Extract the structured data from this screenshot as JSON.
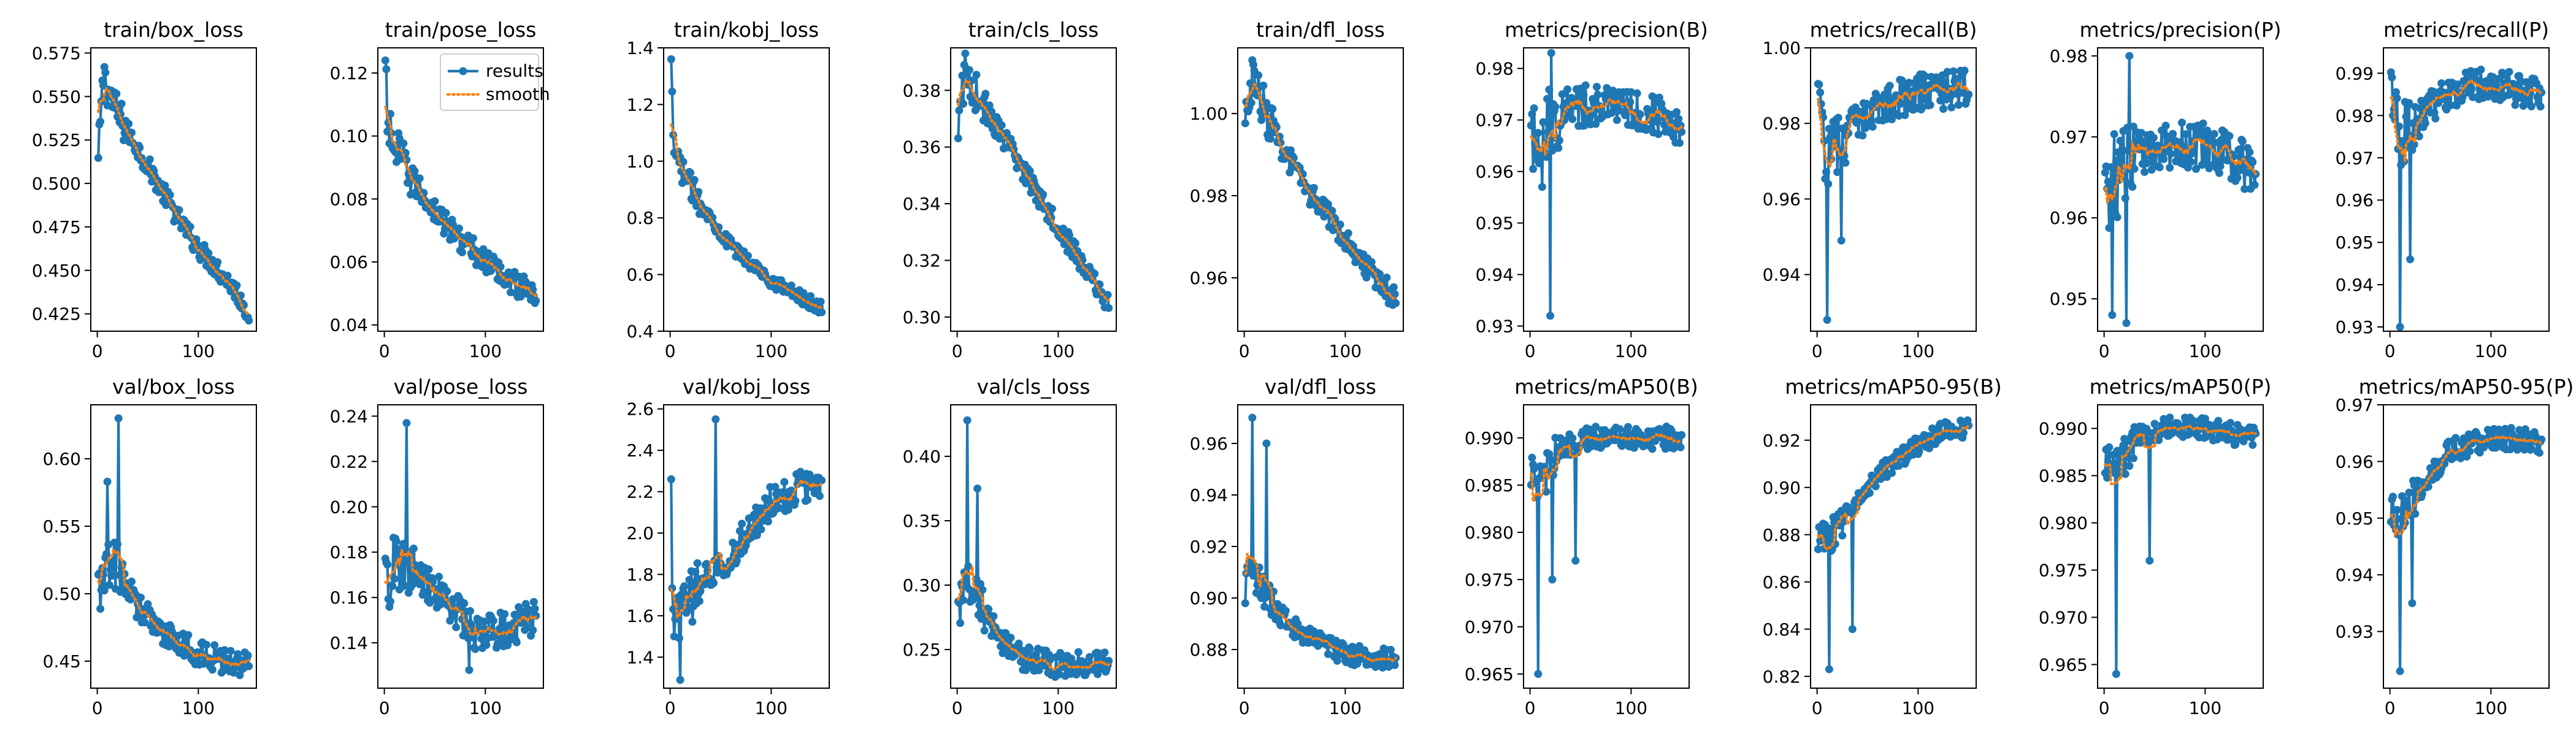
{
  "colors": {
    "results": "#1f77b4",
    "smooth": "#ff7f0e"
  },
  "legend": {
    "results": "results",
    "smooth": "smooth",
    "placement": "upper-right of train/pose_loss"
  },
  "chart_data": [
    {
      "type": "line",
      "title": "train/box_loss",
      "x_range": [
        1,
        150
      ],
      "xticks": [
        0,
        100
      ],
      "ylim": [
        0.415,
        0.578
      ],
      "yticks": [
        0.425,
        0.45,
        0.475,
        0.5,
        0.525,
        0.55,
        0.575
      ],
      "ytick_labels": [
        "0.425",
        "0.450",
        "0.475",
        "0.500",
        "0.525",
        "0.550",
        "0.575"
      ],
      "trend": [
        [
          1,
          0.512
        ],
        [
          3,
          0.535
        ],
        [
          6,
          0.56
        ],
        [
          10,
          0.555
        ],
        [
          20,
          0.54
        ],
        [
          40,
          0.52
        ],
        [
          60,
          0.5
        ],
        [
          80,
          0.48
        ],
        [
          100,
          0.463
        ],
        [
          120,
          0.45
        ],
        [
          135,
          0.44
        ],
        [
          150,
          0.425
        ]
      ],
      "noise": 0.006,
      "spikes": [
        [
          7,
          0.567
        ]
      ]
    },
    {
      "type": "line",
      "title": "train/pose_loss",
      "x_range": [
        1,
        150
      ],
      "xticks": [
        0,
        100
      ],
      "ylim": [
        0.038,
        0.128
      ],
      "yticks": [
        0.04,
        0.06,
        0.08,
        0.1,
        0.12
      ],
      "ytick_labels": [
        "0.04",
        "0.06",
        "0.08",
        "0.10",
        "0.12"
      ],
      "trend": [
        [
          1,
          0.124
        ],
        [
          3,
          0.105
        ],
        [
          10,
          0.096
        ],
        [
          30,
          0.085
        ],
        [
          60,
          0.072
        ],
        [
          100,
          0.06
        ],
        [
          130,
          0.053
        ],
        [
          150,
          0.05
        ]
      ],
      "noise": 0.004,
      "spikes": [
        [
          1,
          0.124
        ]
      ]
    },
    {
      "type": "line",
      "title": "train/kobj_loss",
      "x_range": [
        1,
        150
      ],
      "xticks": [
        0,
        100
      ],
      "ylim": [
        0.4,
        1.4
      ],
      "yticks": [
        0.4,
        0.6,
        0.8,
        1.0,
        1.2,
        1.4
      ],
      "ytick_labels": [
        "0.4",
        "0.6",
        "0.8",
        "1.0",
        "1.2",
        "1.4"
      ],
      "trend": [
        [
          1,
          1.36
        ],
        [
          3,
          1.05
        ],
        [
          10,
          0.98
        ],
        [
          30,
          0.85
        ],
        [
          60,
          0.7
        ],
        [
          100,
          0.58
        ],
        [
          130,
          0.52
        ],
        [
          150,
          0.48
        ]
      ],
      "noise": 0.025,
      "spikes": [
        [
          1,
          1.36
        ]
      ]
    },
    {
      "type": "line",
      "title": "train/cls_loss",
      "x_range": [
        1,
        150
      ],
      "xticks": [
        0,
        100
      ],
      "ylim": [
        0.295,
        0.395
      ],
      "yticks": [
        0.3,
        0.32,
        0.34,
        0.36,
        0.38
      ],
      "ytick_labels": [
        "0.30",
        "0.32",
        "0.34",
        "0.36",
        "0.38"
      ],
      "trend": [
        [
          1,
          0.36
        ],
        [
          4,
          0.38
        ],
        [
          10,
          0.385
        ],
        [
          30,
          0.372
        ],
        [
          60,
          0.355
        ],
        [
          100,
          0.332
        ],
        [
          130,
          0.315
        ],
        [
          150,
          0.305
        ]
      ],
      "noise": 0.004,
      "spikes": [
        [
          8,
          0.393
        ]
      ]
    },
    {
      "type": "line",
      "title": "train/dfl_loss",
      "x_range": [
        1,
        150
      ],
      "xticks": [
        0,
        100
      ],
      "ylim": [
        0.947,
        1.016
      ],
      "yticks": [
        0.96,
        0.98,
        1.0
      ],
      "ytick_labels": [
        "0.96",
        "0.98",
        "1.00"
      ],
      "trend": [
        [
          1,
          0.995
        ],
        [
          4,
          1.005
        ],
        [
          10,
          1.008
        ],
        [
          30,
          0.995
        ],
        [
          60,
          0.982
        ],
        [
          100,
          0.97
        ],
        [
          130,
          0.96
        ],
        [
          150,
          0.955
        ]
      ],
      "noise": 0.003,
      "spikes": [
        [
          8,
          1.013
        ]
      ]
    },
    {
      "type": "line",
      "title": "metrics/precision(B)",
      "x_range": [
        1,
        150
      ],
      "xticks": [
        0,
        100
      ],
      "ylim": [
        0.929,
        0.984
      ],
      "yticks": [
        0.93,
        0.94,
        0.95,
        0.96,
        0.97,
        0.98
      ],
      "ytick_labels": [
        "0.93",
        "0.94",
        "0.95",
        "0.96",
        "0.97",
        "0.98"
      ],
      "trend": [
        [
          1,
          0.965
        ],
        [
          10,
          0.968
        ],
        [
          30,
          0.972
        ],
        [
          60,
          0.973
        ],
        [
          100,
          0.972
        ],
        [
          130,
          0.971
        ],
        [
          150,
          0.969
        ]
      ],
      "noise": 0.004,
      "spikes": [
        [
          20,
          0.932
        ],
        [
          21,
          0.983
        ],
        [
          12,
          0.957
        ]
      ]
    },
    {
      "type": "line",
      "title": "metrics/recall(B)",
      "x_range": [
        1,
        150
      ],
      "xticks": [
        0,
        100
      ],
      "ylim": [
        0.925,
        1.0
      ],
      "yticks": [
        0.94,
        0.96,
        0.98,
        1.0
      ],
      "ytick_labels": [
        "0.94",
        "0.96",
        "0.98",
        "1.00"
      ],
      "trend": [
        [
          1,
          0.985
        ],
        [
          10,
          0.97
        ],
        [
          30,
          0.978
        ],
        [
          60,
          0.985
        ],
        [
          100,
          0.988
        ],
        [
          130,
          0.989
        ],
        [
          150,
          0.989
        ]
      ],
      "noise": 0.005,
      "spikes": [
        [
          10,
          0.928
        ],
        [
          24,
          0.949
        ]
      ]
    },
    {
      "type": "line",
      "title": "metrics/precision(P)",
      "x_range": [
        1,
        150
      ],
      "xticks": [
        0,
        100
      ],
      "ylim": [
        0.946,
        0.981
      ],
      "yticks": [
        0.95,
        0.96,
        0.97,
        0.98
      ],
      "ytick_labels": [
        "0.95",
        "0.96",
        "0.97",
        "0.98"
      ],
      "trend": [
        [
          1,
          0.962
        ],
        [
          10,
          0.965
        ],
        [
          30,
          0.968
        ],
        [
          60,
          0.969
        ],
        [
          100,
          0.969
        ],
        [
          130,
          0.967
        ],
        [
          150,
          0.966
        ]
      ],
      "noise": 0.003,
      "spikes": [
        [
          22,
          0.947
        ],
        [
          25,
          0.98
        ],
        [
          8,
          0.948
        ]
      ]
    },
    {
      "type": "line",
      "title": "metrics/recall(P)",
      "x_range": [
        1,
        150
      ],
      "xticks": [
        0,
        100
      ],
      "ylim": [
        0.929,
        0.996
      ],
      "yticks": [
        0.93,
        0.94,
        0.95,
        0.96,
        0.97,
        0.98,
        0.99
      ],
      "ytick_labels": [
        "0.93",
        "0.94",
        "0.95",
        "0.96",
        "0.97",
        "0.98",
        "0.99"
      ],
      "trend": [
        [
          1,
          0.985
        ],
        [
          10,
          0.975
        ],
        [
          30,
          0.98
        ],
        [
          60,
          0.986
        ],
        [
          100,
          0.988
        ],
        [
          130,
          0.986
        ],
        [
          150,
          0.986
        ]
      ],
      "noise": 0.004,
      "spikes": [
        [
          10,
          0.93
        ],
        [
          20,
          0.946
        ]
      ]
    },
    {
      "type": "line",
      "title": "val/box_loss",
      "x_range": [
        1,
        150
      ],
      "xticks": [
        0,
        100
      ],
      "ylim": [
        0.43,
        0.64
      ],
      "yticks": [
        0.45,
        0.5,
        0.55,
        0.6
      ],
      "ytick_labels": [
        "0.45",
        "0.50",
        "0.55",
        "0.60"
      ],
      "trend": [
        [
          1,
          0.5
        ],
        [
          8,
          0.52
        ],
        [
          20,
          0.52
        ],
        [
          40,
          0.49
        ],
        [
          60,
          0.475
        ],
        [
          100,
          0.455
        ],
        [
          130,
          0.45
        ],
        [
          150,
          0.447
        ]
      ],
      "noise": 0.01,
      "spikes": [
        [
          21,
          0.63
        ],
        [
          10,
          0.583
        ]
      ]
    },
    {
      "type": "line",
      "title": "val/pose_loss",
      "x_range": [
        1,
        150
      ],
      "xticks": [
        0,
        100
      ],
      "ylim": [
        0.12,
        0.245
      ],
      "yticks": [
        0.14,
        0.16,
        0.18,
        0.2,
        0.22,
        0.24
      ],
      "ytick_labels": [
        "0.14",
        "0.16",
        "0.18",
        "0.20",
        "0.22",
        "0.24"
      ],
      "trend": [
        [
          1,
          0.165
        ],
        [
          10,
          0.175
        ],
        [
          30,
          0.17
        ],
        [
          60,
          0.16
        ],
        [
          90,
          0.145
        ],
        [
          110,
          0.145
        ],
        [
          130,
          0.148
        ],
        [
          150,
          0.152
        ]
      ],
      "noise": 0.008,
      "spikes": [
        [
          22,
          0.237
        ],
        [
          84,
          0.128
        ]
      ]
    },
    {
      "type": "line",
      "title": "val/kobj_loss",
      "x_range": [
        1,
        150
      ],
      "xticks": [
        0,
        100
      ],
      "ylim": [
        1.25,
        2.62
      ],
      "yticks": [
        1.4,
        1.6,
        1.8,
        2.0,
        2.2,
        2.4,
        2.6
      ],
      "ytick_labels": [
        "1.4",
        "1.6",
        "1.8",
        "2.0",
        "2.2",
        "2.4",
        "2.6"
      ],
      "trend": [
        [
          1,
          1.65
        ],
        [
          10,
          1.6
        ],
        [
          30,
          1.75
        ],
        [
          60,
          1.9
        ],
        [
          100,
          2.15
        ],
        [
          130,
          2.22
        ],
        [
          150,
          2.25
        ]
      ],
      "noise": 0.08,
      "spikes": [
        [
          1,
          2.26
        ],
        [
          45,
          2.55
        ],
        [
          10,
          1.29
        ]
      ]
    },
    {
      "type": "line",
      "title": "val/cls_loss",
      "x_range": [
        1,
        150
      ],
      "xticks": [
        0,
        100
      ],
      "ylim": [
        0.22,
        0.44
      ],
      "yticks": [
        0.25,
        0.3,
        0.35,
        0.4
      ],
      "ytick_labels": [
        "0.25",
        "0.30",
        "0.35",
        "0.40"
      ],
      "trend": [
        [
          1,
          0.27
        ],
        [
          8,
          0.31
        ],
        [
          20,
          0.29
        ],
        [
          40,
          0.26
        ],
        [
          60,
          0.245
        ],
        [
          100,
          0.238
        ],
        [
          150,
          0.24
        ]
      ],
      "noise": 0.01,
      "spikes": [
        [
          10,
          0.428
        ],
        [
          20,
          0.375
        ]
      ]
    },
    {
      "type": "line",
      "title": "val/dfl_loss",
      "x_range": [
        1,
        150
      ],
      "xticks": [
        0,
        100
      ],
      "ylim": [
        0.865,
        0.975
      ],
      "yticks": [
        0.88,
        0.9,
        0.92,
        0.94,
        0.96
      ],
      "ytick_labels": [
        "0.88",
        "0.90",
        "0.92",
        "0.94",
        "0.96"
      ],
      "trend": [
        [
          1,
          0.905
        ],
        [
          10,
          0.91
        ],
        [
          30,
          0.895
        ],
        [
          60,
          0.885
        ],
        [
          100,
          0.878
        ],
        [
          150,
          0.876
        ]
      ],
      "noise": 0.004,
      "spikes": [
        [
          8,
          0.97
        ],
        [
          22,
          0.96
        ]
      ]
    },
    {
      "type": "line",
      "title": "metrics/mAP50(B)",
      "x_range": [
        1,
        150
      ],
      "xticks": [
        0,
        100
      ],
      "ylim": [
        0.9635,
        0.9935
      ],
      "yticks": [
        0.965,
        0.97,
        0.975,
        0.98,
        0.985,
        0.99
      ],
      "ytick_labels": [
        "0.965",
        "0.970",
        "0.975",
        "0.980",
        "0.985",
        "0.990"
      ],
      "trend": [
        [
          1,
          0.987
        ],
        [
          10,
          0.985
        ],
        [
          30,
          0.989
        ],
        [
          60,
          0.99
        ],
        [
          100,
          0.99
        ],
        [
          150,
          0.99
        ]
      ],
      "noise": 0.0012,
      "spikes": [
        [
          8,
          0.965
        ],
        [
          22,
          0.975
        ],
        [
          45,
          0.977
        ]
      ]
    },
    {
      "type": "line",
      "title": "metrics/mAP50-95(B)",
      "x_range": [
        1,
        150
      ],
      "xticks": [
        0,
        100
      ],
      "ylim": [
        0.815,
        0.935
      ],
      "yticks": [
        0.82,
        0.84,
        0.86,
        0.88,
        0.9,
        0.92
      ],
      "ytick_labels": [
        "0.82",
        "0.84",
        "0.86",
        "0.88",
        "0.90",
        "0.92"
      ],
      "trend": [
        [
          1,
          0.88
        ],
        [
          10,
          0.877
        ],
        [
          30,
          0.89
        ],
        [
          60,
          0.905
        ],
        [
          100,
          0.918
        ],
        [
          130,
          0.925
        ],
        [
          150,
          0.925
        ]
      ],
      "noise": 0.004,
      "spikes": [
        [
          12,
          0.823
        ],
        [
          35,
          0.84
        ]
      ]
    },
    {
      "type": "line",
      "title": "metrics/mAP50(P)",
      "x_range": [
        1,
        150
      ],
      "xticks": [
        0,
        100
      ],
      "ylim": [
        0.9625,
        0.9925
      ],
      "yticks": [
        0.965,
        0.97,
        0.975,
        0.98,
        0.985,
        0.99
      ],
      "ytick_labels": [
        "0.965",
        "0.970",
        "0.975",
        "0.980",
        "0.985",
        "0.990"
      ],
      "trend": [
        [
          1,
          0.987
        ],
        [
          10,
          0.985
        ],
        [
          30,
          0.989
        ],
        [
          60,
          0.99
        ],
        [
          100,
          0.99
        ],
        [
          150,
          0.989
        ]
      ],
      "noise": 0.0012,
      "spikes": [
        [
          12,
          0.964
        ],
        [
          45,
          0.976
        ]
      ]
    },
    {
      "type": "line",
      "title": "metrics/mAP50-95(P)",
      "x_range": [
        1,
        150
      ],
      "xticks": [
        0,
        100
      ],
      "ylim": [
        0.92,
        0.97
      ],
      "yticks": [
        0.93,
        0.94,
        0.95,
        0.96,
        0.97
      ],
      "ytick_labels": [
        "0.93",
        "0.94",
        "0.95",
        "0.96",
        "0.97"
      ],
      "trend": [
        [
          1,
          0.952
        ],
        [
          10,
          0.95
        ],
        [
          30,
          0.955
        ],
        [
          60,
          0.962
        ],
        [
          100,
          0.964
        ],
        [
          130,
          0.964
        ],
        [
          150,
          0.963
        ]
      ],
      "noise": 0.002,
      "spikes": [
        [
          10,
          0.923
        ],
        [
          22,
          0.935
        ]
      ]
    }
  ]
}
